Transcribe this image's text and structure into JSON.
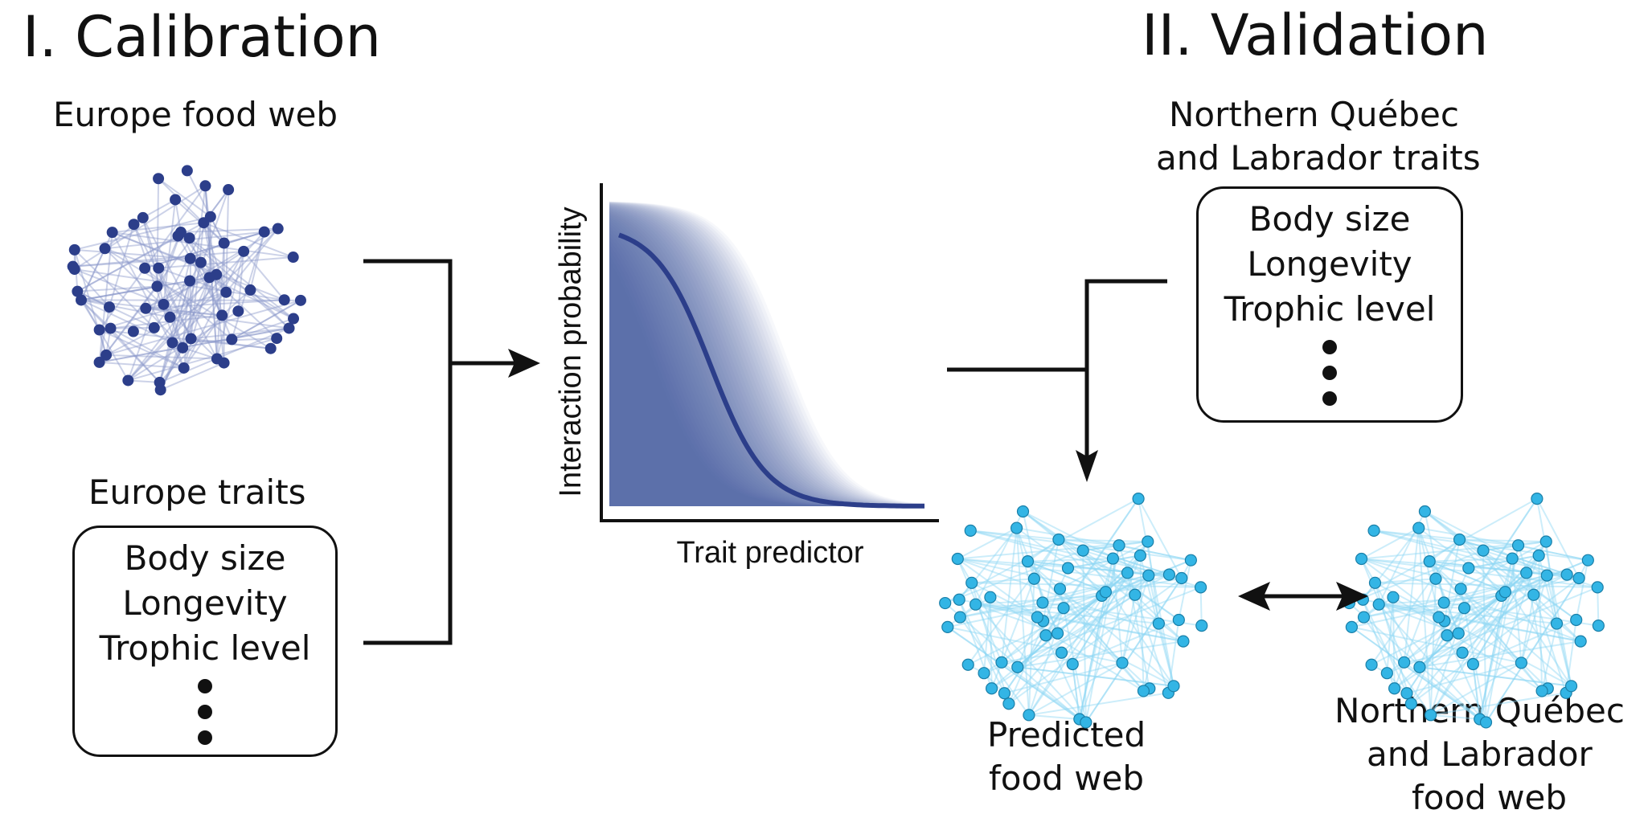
{
  "calibration": {
    "title": "I. Calibration",
    "food_web_label": "Europe food web",
    "traits_label": "Europe traits",
    "traits": [
      "Body size",
      "Longevity",
      "Trophic level"
    ]
  },
  "validation": {
    "title": "II. Validation",
    "traits_label_line1": "Northern Québec",
    "traits_label_line2": "and Labrador traits",
    "traits": [
      "Body size",
      "Longevity",
      "Trophic level"
    ],
    "predicted_label_line1": "Predicted",
    "predicted_label_line2": "food web",
    "observed_label_line1": "Northern Québec",
    "observed_label_line2": "and Labrador",
    "observed_label_line3": "food web"
  },
  "model_plot": {
    "xlabel": "Trait predictor",
    "ylabel": "Interaction probability"
  },
  "colors": {
    "europe_nodes": "#2c3e8a",
    "europe_edges": "#8f9bcc",
    "quebec_nodes": "#33b5e5",
    "quebec_edges": "#8fd8f4",
    "curve": "#2c3e8a",
    "band": "#4a5ea6"
  },
  "icons": [
    "europe-network-graph",
    "predicted-network-graph",
    "observed-network-graph",
    "logistic-curve"
  ]
}
